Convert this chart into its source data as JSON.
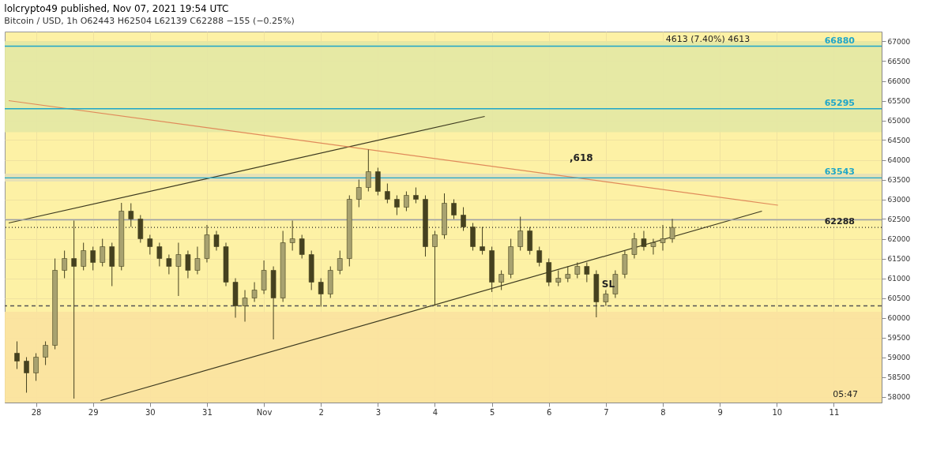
{
  "chart_data": {
    "type": "candlestick",
    "title": "lolcrypto49 published, Nov 07, 2021 19:54 UTC",
    "subtitle": "Bitcoin / USD, 1h  O62443  H62504  L62139  C62288  −155 (−0.25%)",
    "x": [
      "2021-10-27T16:00",
      "2021-10-27T20:00",
      "2021-10-28T00:00",
      "2021-10-28T04:00",
      "2021-10-28T08:00",
      "2021-10-28T12:00",
      "2021-10-28T16:00",
      "2021-10-28T20:00",
      "2021-10-29T00:00",
      "2021-10-29T04:00",
      "2021-10-29T08:00",
      "2021-10-29T12:00",
      "2021-10-29T16:00",
      "2021-10-29T20:00",
      "2021-10-30T00:00",
      "2021-10-30T04:00",
      "2021-10-30T08:00",
      "2021-10-30T12:00",
      "2021-10-30T16:00",
      "2021-10-30T20:00",
      "2021-10-31T00:00",
      "2021-10-31T04:00",
      "2021-10-31T08:00",
      "2021-10-31T12:00",
      "2021-10-31T16:00",
      "2021-10-31T20:00",
      "2021-11-01T00:00",
      "2021-11-01T04:00",
      "2021-11-01T08:00",
      "2021-11-01T12:00",
      "2021-11-01T16:00",
      "2021-11-01T20:00",
      "2021-11-02T00:00",
      "2021-11-02T04:00",
      "2021-11-02T08:00",
      "2021-11-02T12:00",
      "2021-11-02T16:00",
      "2021-11-02T20:00",
      "2021-11-03T00:00",
      "2021-11-03T04:00",
      "2021-11-03T08:00",
      "2021-11-03T12:00",
      "2021-11-03T16:00",
      "2021-11-03T20:00",
      "2021-11-04T00:00",
      "2021-11-04T04:00",
      "2021-11-04T08:00",
      "2021-11-04T12:00",
      "2021-11-04T16:00",
      "2021-11-04T20:00",
      "2021-11-05T00:00",
      "2021-11-05T04:00",
      "2021-11-05T08:00",
      "2021-11-05T12:00",
      "2021-11-05T16:00",
      "2021-11-05T20:00",
      "2021-11-06T00:00",
      "2021-11-06T04:00",
      "2021-11-06T08:00",
      "2021-11-06T12:00",
      "2021-11-06T16:00",
      "2021-11-06T20:00",
      "2021-11-07T00:00",
      "2021-11-07T04:00",
      "2021-11-07T08:00",
      "2021-11-07T12:00",
      "2021-11-07T16:00",
      "2021-11-07T20:00",
      "2021-11-08T00:00",
      "2021-11-08T04:00"
    ],
    "ohlc": [
      [
        59100,
        59400,
        58700,
        58900
      ],
      [
        58900,
        59000,
        58100,
        58600
      ],
      [
        58600,
        59100,
        58400,
        59000
      ],
      [
        59000,
        59400,
        58800,
        59300
      ],
      [
        59300,
        61500,
        59200,
        61200
      ],
      [
        61200,
        61700,
        61000,
        61500
      ],
      [
        61500,
        62460,
        57950,
        61300
      ],
      [
        61300,
        61900,
        61200,
        61700
      ],
      [
        61700,
        61800,
        61200,
        61400
      ],
      [
        61400,
        62000,
        61300,
        61800
      ],
      [
        61800,
        61900,
        60800,
        61300
      ],
      [
        61300,
        62910,
        61200,
        62700
      ],
      [
        62700,
        62900,
        62300,
        62500
      ],
      [
        62500,
        62600,
        61900,
        62000
      ],
      [
        62000,
        62100,
        61600,
        61800
      ],
      [
        61800,
        61900,
        61300,
        61500
      ],
      [
        61500,
        61600,
        61100,
        61300
      ],
      [
        61300,
        61900,
        60550,
        61600
      ],
      [
        61600,
        61700,
        61000,
        61200
      ],
      [
        61200,
        61800,
        61100,
        61500
      ],
      [
        61500,
        62350,
        61400,
        62100
      ],
      [
        62100,
        62200,
        61700,
        61800
      ],
      [
        61800,
        61900,
        60800,
        60900
      ],
      [
        60900,
        61000,
        60000,
        60300
      ],
      [
        60300,
        60700,
        59900,
        60500
      ],
      [
        60500,
        60900,
        60400,
        60700
      ],
      [
        60700,
        61450,
        60600,
        61200
      ],
      [
        61200,
        61300,
        59450,
        60500
      ],
      [
        60500,
        62200,
        60400,
        61900
      ],
      [
        61900,
        62460,
        61700,
        62000
      ],
      [
        62000,
        62100,
        61500,
        61600
      ],
      [
        61600,
        61700,
        60700,
        60900
      ],
      [
        60900,
        61000,
        60280,
        60600
      ],
      [
        60600,
        61300,
        60500,
        61200
      ],
      [
        61200,
        61700,
        61100,
        61500
      ],
      [
        61500,
        63100,
        61300,
        63000
      ],
      [
        63000,
        63500,
        62800,
        63300
      ],
      [
        63300,
        64260,
        63200,
        63700
      ],
      [
        63700,
        63800,
        63100,
        63200
      ],
      [
        63200,
        63400,
        62900,
        63000
      ],
      [
        63000,
        63100,
        62600,
        62800
      ],
      [
        62800,
        63200,
        62700,
        63100
      ],
      [
        63100,
        63300,
        62900,
        63000
      ],
      [
        63000,
        63100,
        61550,
        61800
      ],
      [
        61800,
        62200,
        60300,
        62100
      ],
      [
        62100,
        63150,
        62000,
        62900
      ],
      [
        62900,
        63000,
        62500,
        62600
      ],
      [
        62600,
        62800,
        62200,
        62300
      ],
      [
        62300,
        62400,
        61700,
        61800
      ],
      [
        61800,
        62300,
        61600,
        61700
      ],
      [
        61700,
        61800,
        60650,
        60900
      ],
      [
        60900,
        61200,
        60700,
        61100
      ],
      [
        61100,
        62000,
        61000,
        61800
      ],
      [
        61800,
        62560,
        61700,
        62200
      ],
      [
        62200,
        62300,
        61600,
        61700
      ],
      [
        61700,
        61800,
        61300,
        61400
      ],
      [
        61400,
        61500,
        60800,
        60900
      ],
      [
        60900,
        61200,
        60800,
        61000
      ],
      [
        61000,
        61300,
        60900,
        61100
      ],
      [
        61100,
        61400,
        61000,
        61300
      ],
      [
        61300,
        61400,
        60900,
        61100
      ],
      [
        61100,
        61200,
        60010,
        60400
      ],
      [
        60400,
        60700,
        60300,
        60600
      ],
      [
        60600,
        61200,
        60500,
        61100
      ],
      [
        61100,
        61700,
        61000,
        61600
      ],
      [
        61600,
        62150,
        61500,
        62000
      ],
      [
        62000,
        62200,
        61700,
        61800
      ],
      [
        61800,
        62000,
        61600,
        61900
      ],
      [
        61900,
        62350,
        61700,
        62000
      ],
      [
        62000,
        62504,
        61900,
        62288
      ]
    ],
    "series": [
      {
        "type": "line",
        "color": "#3d3a20",
        "x": [
          "2021-10-29T03:10",
          "2021-11-09T17:45"
        ],
        "values": [
          57900,
          62700
        ]
      },
      {
        "type": "line",
        "color": "#3d3a20",
        "x": [
          "2021-10-27T12:30",
          "2021-11-04T21:00"
        ],
        "values": [
          62400,
          65100
        ]
      },
      {
        "type": "line",
        "color": "#e08a5a",
        "x": [
          "2021-10-27T12:30",
          "2021-11-10T00:30"
        ],
        "values": [
          65500,
          62850
        ]
      }
    ],
    "xlim": [
      "2021-10-27T12:30",
      "2021-11-11T18:30"
    ],
    "xticks": [
      {
        "value": "2021-10-28",
        "label": "28"
      },
      {
        "value": "2021-10-29",
        "label": "29"
      },
      {
        "value": "2021-10-30",
        "label": "30"
      },
      {
        "value": "2021-10-31",
        "label": "31"
      },
      {
        "value": "2021-11-01",
        "label": "Nov"
      },
      {
        "value": "2021-11-02",
        "label": "2"
      },
      {
        "value": "2021-11-03",
        "label": "3"
      },
      {
        "value": "2021-11-04",
        "label": "4"
      },
      {
        "value": "2021-11-05",
        "label": "5"
      },
      {
        "value": "2021-11-06",
        "label": "6"
      },
      {
        "value": "2021-11-07",
        "label": "7"
      },
      {
        "value": "2021-11-08",
        "label": "8"
      },
      {
        "value": "2021-11-09",
        "label": "9"
      },
      {
        "value": "2021-11-10",
        "label": "10"
      },
      {
        "value": "2021-11-11",
        "label": "11"
      }
    ],
    "ylim": [
      57850,
      67250
    ],
    "yticks": [
      58000,
      58500,
      59000,
      59500,
      60000,
      60500,
      61000,
      61500,
      62000,
      62500,
      63000,
      63500,
      64000,
      64500,
      65000,
      65500,
      66000,
      66500,
      67000
    ],
    "bands": [
      {
        "axis": "y",
        "from": 64700,
        "to": 67000,
        "color": "#e3e8a4"
      },
      {
        "axis": "y",
        "from": 57850,
        "to": 60150,
        "color": "#fbe2a0"
      },
      {
        "axis": "y",
        "from": 63450,
        "to": 63650,
        "color": "#e6e0b8"
      }
    ],
    "ref_lines": [
      {
        "axis": "y",
        "value": 66880,
        "label": "66880",
        "color": "#1fa6c9"
      },
      {
        "axis": "y",
        "value": 65295,
        "label": "65295",
        "color": "#1fa6c9"
      },
      {
        "axis": "y",
        "value": 63543,
        "label": "63543",
        "color": "#1fa6c9"
      },
      {
        "axis": "y",
        "value": 62480,
        "color": "#9aa0a8"
      },
      {
        "axis": "y",
        "value": 62288,
        "label": "62288",
        "color": "#222222",
        "line_style": "dotted"
      },
      {
        "axis": "y",
        "value": 60300,
        "color": "#555555",
        "line_style": "dashed"
      }
    ],
    "annotations": [
      ",618",
      {
        "text": "SL",
        "x": "2021-11-07T01:00",
        "y": 60700
      },
      "4613 (7.40%) 4613",
      "05:47"
    ],
    "grid": true
  }
}
